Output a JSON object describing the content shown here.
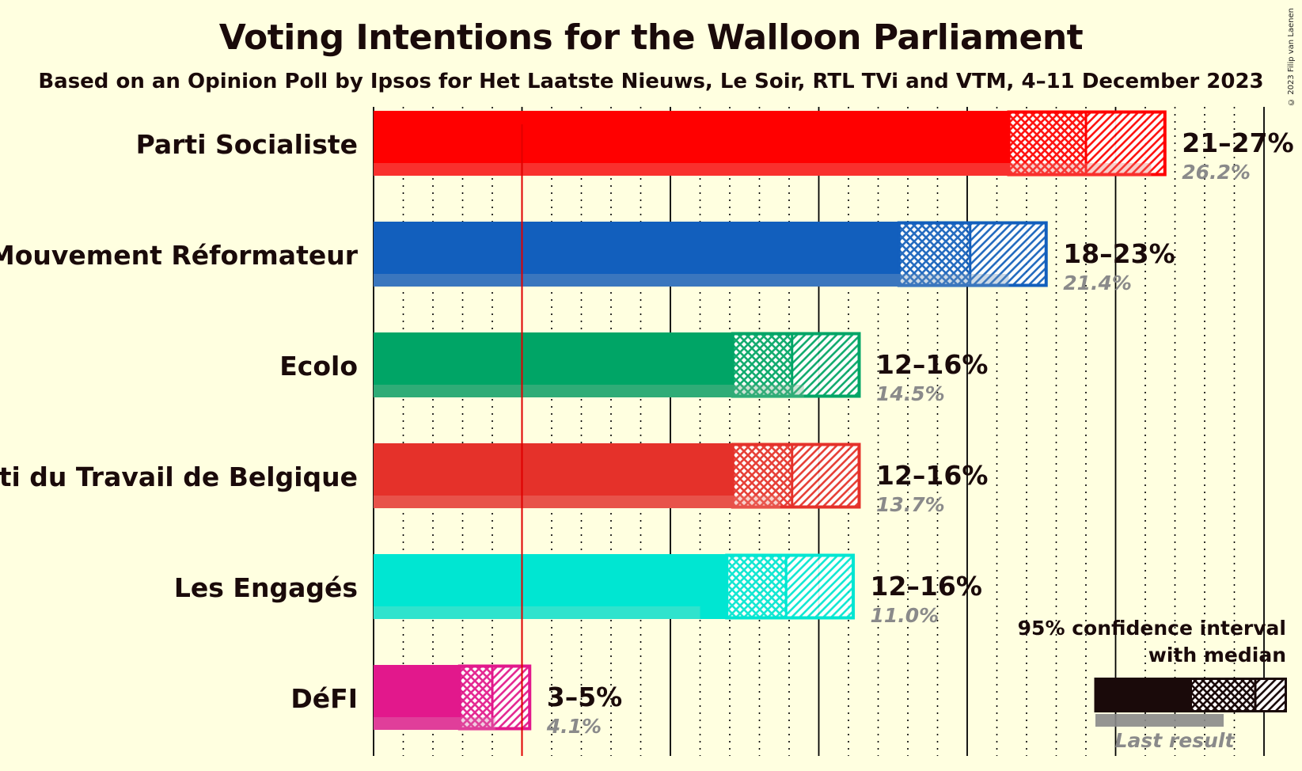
{
  "title": "Voting Intentions for the Walloon Parliament",
  "subtitle": "Based on an Opinion Poll by Ipsos for Het Laatste Nieuws, Le Soir, RTL TVi and VTM, 4–11 December 2023",
  "copyright": "© 2023 Filip van Laenen",
  "chart_data": {
    "type": "bar",
    "orientation": "horizontal",
    "x_unit": "%",
    "x_range": [
      0,
      30
    ],
    "threshold": 5,
    "grid": true,
    "legend_position": "bottom-right",
    "series": [
      {
        "party": "Parti Socialiste",
        "range_label": "21–27%",
        "last_label": "26.2%",
        "ci_low": 21.4,
        "median": 24.0,
        "ci_high": 26.7,
        "last": 26.2,
        "color": "#ff0000",
        "last_color": "#ee8a80"
      },
      {
        "party": "Mouvement Réformateur",
        "range_label": "18–23%",
        "last_label": "21.4%",
        "ci_low": 17.7,
        "median": 20.1,
        "ci_high": 22.7,
        "last": 21.4,
        "color": "#125fbd",
        "last_color": "#88a3bf"
      },
      {
        "party": "Ecolo",
        "range_label": "12–16%",
        "last_label": "14.5%",
        "ci_low": 12.1,
        "median": 14.1,
        "ci_high": 16.4,
        "last": 14.5,
        "color": "#00a566",
        "last_color": "#88bb99"
      },
      {
        "party": "Parti du Travail de Belgique",
        "range_label": "12–16%",
        "last_label": "13.7%",
        "ci_low": 12.1,
        "median": 14.1,
        "ci_high": 16.4,
        "last": 13.7,
        "color": "#e5312a",
        "last_color": "#ee9288"
      },
      {
        "party": "Les Engagés",
        "range_label": "12–16%",
        "last_label": "11.0%",
        "ci_low": 11.9,
        "median": 13.9,
        "ci_high": 16.2,
        "last": 11.0,
        "color": "#00e6d2",
        "last_color": "#88ddc7"
      },
      {
        "party": "DéFI",
        "range_label": "3–5%",
        "last_label": "4.1%",
        "ci_low": 2.9,
        "median": 4.0,
        "ci_high": 5.3,
        "last": 4.1,
        "color": "#e2188c",
        "last_color": "#dd88b4"
      }
    ],
    "legend": {
      "line1": "95% confidence interval",
      "line2": "with median",
      "last_result": "Last result"
    }
  }
}
